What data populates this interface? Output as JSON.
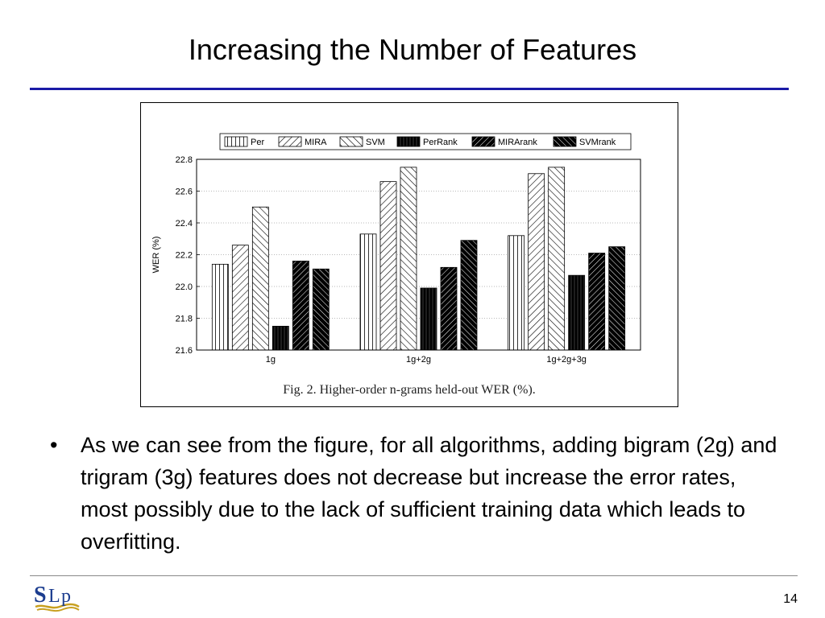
{
  "slide": {
    "title": "Increasing the Number of Features",
    "bullet_symbol": "•",
    "bullet_text": "As we can see from the figure, for all algorithms, adding bigram (2g) and trigram (3g) features does not decrease but increase the error rates, most possibly due to the lack of sufficient training data which leads to overfitting.",
    "page_number": "14",
    "logo_text": "SLP"
  },
  "chart_data": {
    "type": "bar",
    "caption": "Fig. 2.   Higher-order n-grams held-out WER (%).",
    "xlabel": "",
    "ylabel": "WER (%)",
    "ylim": [
      21.6,
      22.8
    ],
    "yticks": [
      21.6,
      21.8,
      22.0,
      22.2,
      22.4,
      22.6,
      22.8
    ],
    "ytick_labels": [
      "21.6",
      "21.8",
      "22.0",
      "22.2",
      "22.4",
      "22.6",
      "22.8"
    ],
    "grid": true,
    "legend_position": "top",
    "categories": [
      "1g",
      "1g+2g",
      "1g+2g+3g"
    ],
    "series": [
      {
        "name": "Per",
        "pattern": "vertical",
        "values": [
          22.14,
          22.33,
          22.32
        ]
      },
      {
        "name": "MIRA",
        "pattern": "diag-up",
        "values": [
          22.26,
          22.66,
          22.71
        ]
      },
      {
        "name": "SVM",
        "pattern": "diag-down",
        "values": [
          22.5,
          22.75,
          22.75
        ]
      },
      {
        "name": "PerRank",
        "pattern": "vertical-dark",
        "values": [
          21.75,
          21.99,
          22.07
        ]
      },
      {
        "name": "MIRArank",
        "pattern": "diag-up-dark",
        "values": [
          22.16,
          22.12,
          22.21
        ]
      },
      {
        "name": "SVMrank",
        "pattern": "diag-down-dark",
        "values": [
          22.11,
          22.29,
          22.25
        ]
      }
    ]
  }
}
